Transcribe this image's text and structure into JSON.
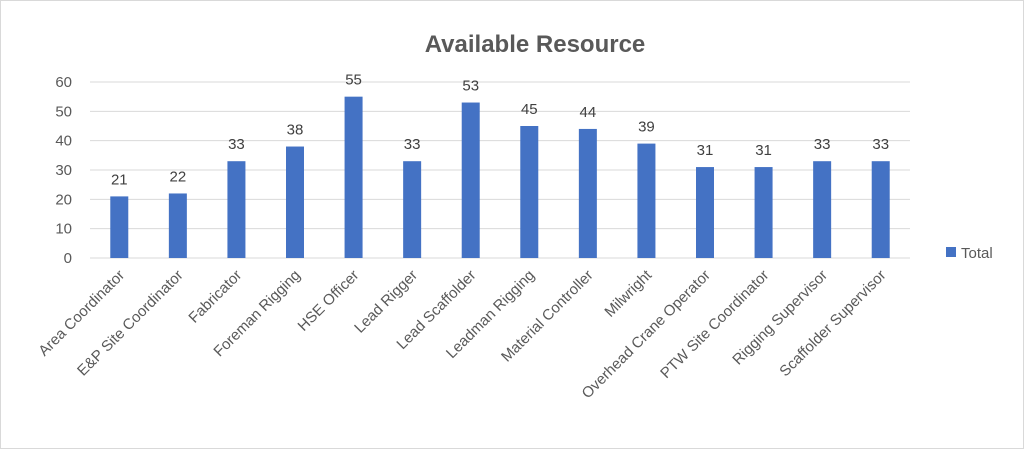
{
  "chart_data": {
    "type": "bar",
    "title": "Available Resource",
    "categories": [
      "Area Coordinator",
      "E&P Site Coordinator",
      "Fabricator",
      "Foreman Rigging",
      "HSE Officer",
      "Lead Rigger",
      "Lead Scaffolder",
      "Leadman Rigging",
      "Material Controller",
      "Milwright",
      "Overhead Crane Operator",
      "PTW Site Coordinator",
      "Rigging Supervisor",
      "Scaffolder Supervisor"
    ],
    "series": [
      {
        "name": "Total",
        "values": [
          21,
          22,
          33,
          38,
          55,
          33,
          53,
          45,
          44,
          39,
          31,
          31,
          33,
          33
        ],
        "color": "#4472c4"
      }
    ],
    "ylim": [
      0,
      60
    ],
    "yticks": [
      0,
      10,
      20,
      30,
      40,
      50,
      60
    ],
    "grid": true,
    "legend": "right",
    "data_labels": true
  }
}
